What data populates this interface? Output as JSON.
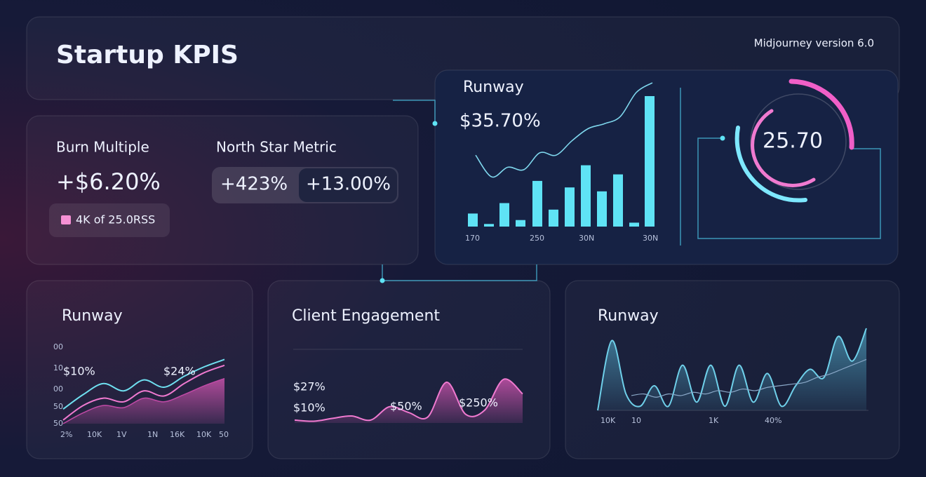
{
  "header": {
    "title": "Startup KPIS",
    "watermark": "Midjourney version 6.0"
  },
  "burn": {
    "title": "Burn Multiple",
    "value": "+$6.20%",
    "badge": "4K of 25.0RSS"
  },
  "north_star": {
    "title": "North Star Metric",
    "pills": [
      "+423%",
      "+13.00%"
    ]
  },
  "runway_main": {
    "title": "Runway",
    "value": "$35.70%",
    "bars": {
      "color": "#5fe3f5",
      "values": [
        10,
        2,
        18,
        5,
        35,
        13,
        30,
        47,
        27,
        40,
        3,
        100
      ]
    },
    "line": {
      "color": "#7fd8ee",
      "values": [
        40,
        22,
        30,
        28,
        42,
        40,
        52,
        62,
        66,
        72,
        92,
        100
      ]
    },
    "x_labels": [
      "170",
      "250",
      "30N",
      "30N"
    ]
  },
  "gauge": {
    "value": "25.70"
  },
  "runway_left": {
    "title": "Runway",
    "labels": [
      "$10%",
      "$24%"
    ],
    "y_labels": [
      "00",
      "10",
      "00",
      "50",
      "50"
    ],
    "x_labels": [
      "2%",
      "10K",
      "1V",
      "1N",
      "16K",
      "10K",
      "50"
    ],
    "series": [
      {
        "color": "#6fe0f0",
        "values": [
          20,
          40,
          55,
          45,
          60,
          50,
          65,
          78,
          88
        ]
      },
      {
        "color": "#f07ad0",
        "values": [
          5,
          25,
          35,
          30,
          45,
          38,
          55,
          70,
          80
        ]
      },
      {
        "color": "#c04aa6",
        "values": [
          0,
          15,
          25,
          22,
          35,
          30,
          40,
          52,
          62
        ]
      }
    ]
  },
  "client": {
    "title": "Client Engagement",
    "labels": [
      "$27%",
      "$10%",
      "$50%",
      "$250%"
    ],
    "series": [
      {
        "color": "#f07ad0",
        "values": [
          5,
          3,
          8,
          12,
          5,
          28,
          18,
          10,
          70,
          15,
          22,
          75,
          50
        ]
      }
    ]
  },
  "runway_right": {
    "title": "Runway",
    "x_labels": [
      "10K",
      "10",
      "1K",
      "40%"
    ],
    "series": [
      {
        "color": "#6fd0ea",
        "values": [
          0,
          85,
          20,
          5,
          30,
          5,
          55,
          10,
          55,
          5,
          55,
          10,
          45,
          5,
          30,
          50,
          40,
          90,
          60,
          100
        ]
      },
      {
        "color": "#8aa8c8",
        "values": [
          18,
          20,
          16,
          20,
          18,
          22,
          20,
          24,
          22,
          26,
          24,
          28,
          30,
          32,
          34,
          40,
          44,
          50,
          56,
          62
        ]
      }
    ]
  }
}
